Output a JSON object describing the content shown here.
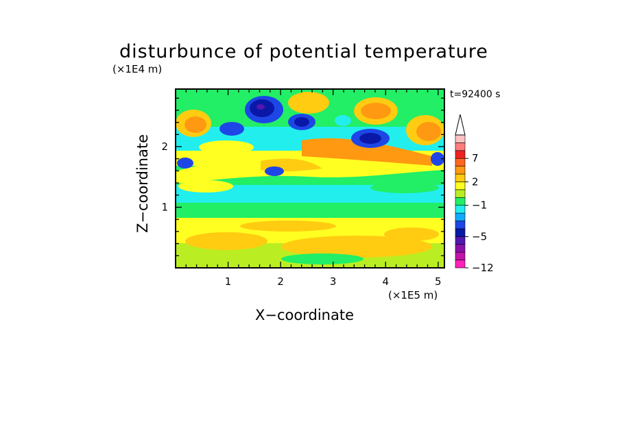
{
  "chart_data": {
    "type": "heatmap",
    "title": "disturbunce of potential temperature",
    "time_label": "t=92400 s",
    "xlabel": "X−coordinate",
    "ylabel": "Z−coordinate",
    "x_unit": "(×1E5 m)",
    "y_unit": "(×1E4 m)",
    "xlim": [
      0,
      5.12
    ],
    "ylim": [
      0,
      2.95
    ],
    "x_ticks": [
      "1",
      "2",
      "3",
      "4",
      "5"
    ],
    "y_ticks": [
      "1",
      "2"
    ],
    "colorbar": {
      "levels": [
        -12,
        -10,
        -8,
        -6,
        -5,
        -4,
        -3,
        -2,
        -1,
        0,
        1,
        2,
        3,
        5,
        7,
        9,
        11
      ],
      "labels": [
        "−12",
        "−5",
        "−1",
        "2",
        "7"
      ],
      "colors": [
        "#ff22b8",
        "#c214a8",
        "#8a10a8",
        "#5018b0",
        "#0a18a8",
        "#1e46e6",
        "#11aaff",
        "#22eeee",
        "#22ee66",
        "#bbee22",
        "#ffff22",
        "#ffcc11",
        "#ff9911",
        "#ff6622",
        "#ee2222",
        "#ff7d7d",
        "#ffc2c2"
      ],
      "extend": "max"
    },
    "grid": "off"
  }
}
